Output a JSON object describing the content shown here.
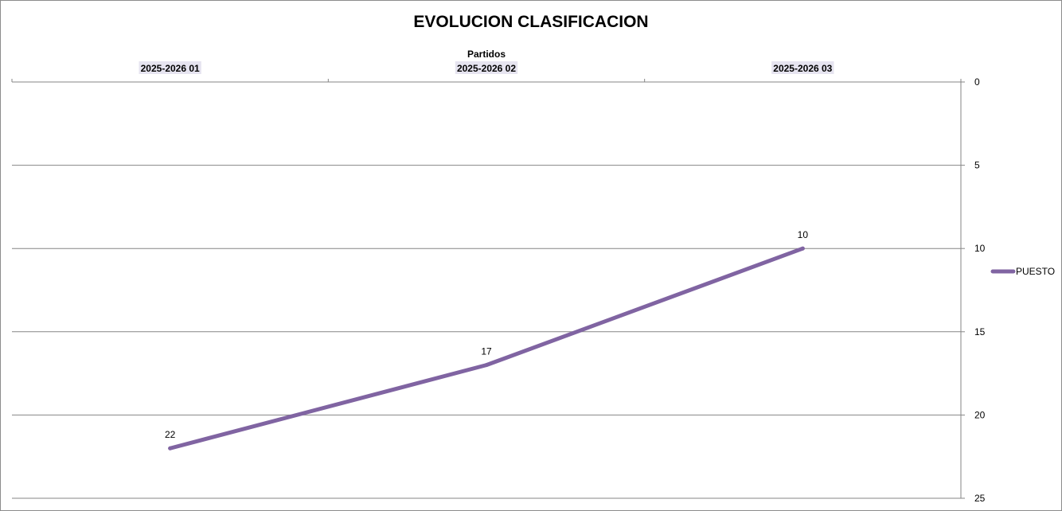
{
  "chart_data": {
    "type": "line",
    "title": "EVOLUCION CLASIFICACION",
    "xlabel": "Partidos",
    "ylabel": "",
    "categories": [
      "2025-2026 01",
      "2025-2026 02",
      "2025-2026 03"
    ],
    "series": [
      {
        "name": "PUESTO",
        "values": [
          22,
          17,
          10
        ],
        "color": "#8064a2"
      }
    ],
    "ylim": [
      0,
      25
    ],
    "yticks": [
      0,
      5,
      10,
      15,
      20,
      25
    ],
    "y_reversed": true,
    "x_axis_position": "top",
    "y_axis_position": "right",
    "grid": true,
    "legend": "right",
    "data_labels": true
  }
}
